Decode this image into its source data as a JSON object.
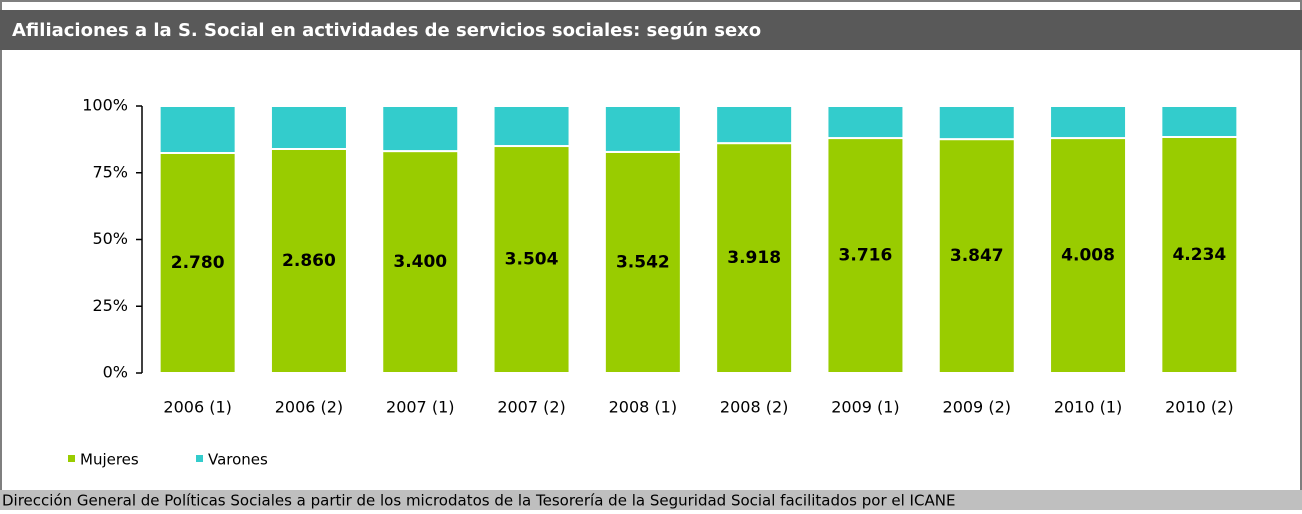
{
  "chart_data": {
    "type": "bar",
    "stacking": "percent",
    "title": "Afiliaciones a la S. Social en actividades de servicios sociales: según sexo",
    "source": "Dirección General de Políticas Sociales a partir de los microdatos de la Tesorería de la Seguridad Social facilitados por el ICANE",
    "categories": [
      "2006 (1)",
      "2006 (2)",
      "2007 (1)",
      "2007 (2)",
      "2008 (1)",
      "2008 (2)",
      "2009 (1)",
      "2009 (2)",
      "2010 (1)",
      "2010 (2)"
    ],
    "series": [
      {
        "name": "Mujeres",
        "color": "#99cc00",
        "values": [
          2780,
          2860,
          3400,
          3504,
          3542,
          3918,
          3716,
          3847,
          4008,
          4234
        ],
        "value_labels": [
          "2.780",
          "2.860",
          "3.400",
          "3.504",
          "3.542",
          "3.918",
          "3.716",
          "3.847",
          "4.008",
          "4.234"
        ]
      },
      {
        "name": "Varones",
        "color": "#33cccc",
        "values": [
          594,
          549,
          691,
          618,
          736,
          633,
          507,
          545,
          547,
          556
        ]
      }
    ],
    "ylim": [
      0,
      100
    ],
    "yticks": [
      {
        "value": 0,
        "label": "0%"
      },
      {
        "value": 25,
        "label": "25%"
      },
      {
        "value": 50,
        "label": "50%"
      },
      {
        "value": 75,
        "label": "75%"
      },
      {
        "value": 100,
        "label": "100%"
      }
    ],
    "legend": "bottom-left"
  }
}
